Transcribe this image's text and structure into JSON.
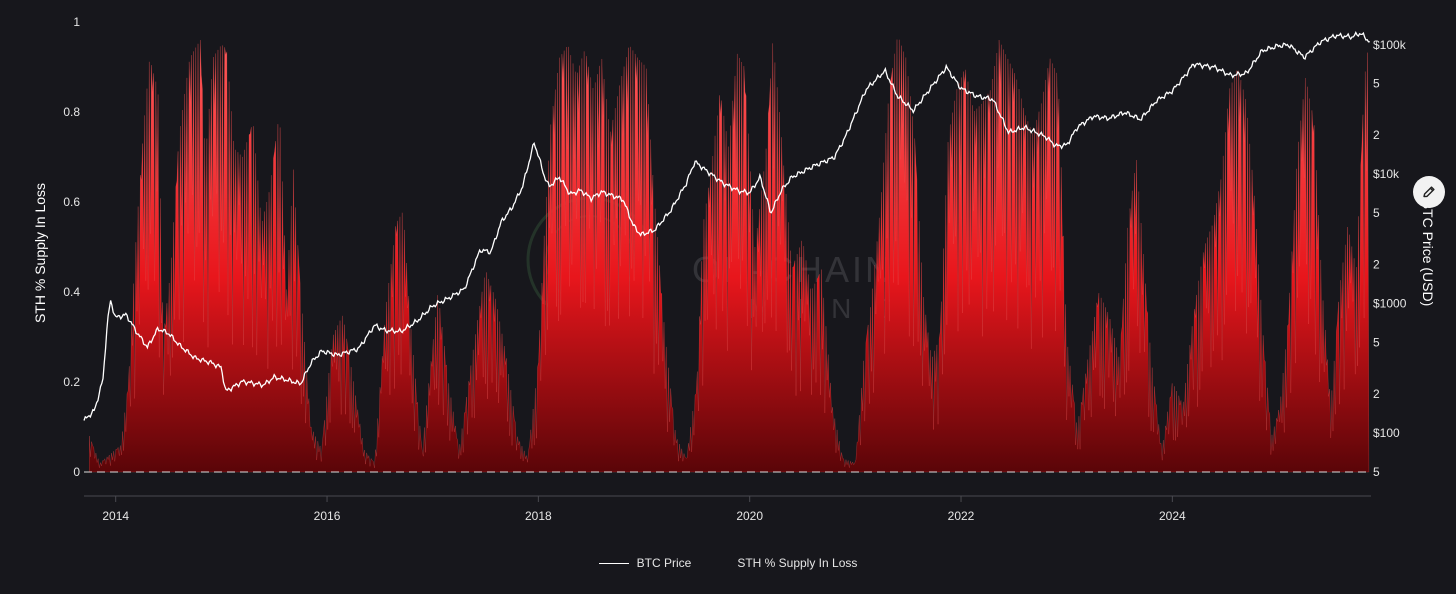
{
  "chart_data": {
    "type": "area",
    "x_axis": {
      "tick_labels": [
        "2014",
        "2016",
        "2018",
        "2020",
        "2022",
        "2024"
      ],
      "range": [
        "2013-09",
        "2025-11"
      ]
    },
    "y_axis_left": {
      "label": "STH % Supply In Loss",
      "range": [
        0,
        1
      ],
      "tick_labels": [
        "0",
        "0.2",
        "0.4",
        "0.6",
        "0.8",
        "1"
      ]
    },
    "y_axis_right": {
      "label": "BTC Price (USD)",
      "scale": "log",
      "range": [
        50,
        150000
      ],
      "tick_labels": [
        "$100k",
        "5",
        "2",
        "$10k",
        "5",
        "2",
        "$1000",
        "5",
        "2",
        "$100",
        "5"
      ]
    },
    "grid": false,
    "legend_position": "bottom",
    "series": [
      {
        "name": "BTC Price",
        "axis": "right",
        "color": "#ffffff",
        "points": [
          [
            2013.7,
            125
          ],
          [
            2013.8,
            150
          ],
          [
            2013.88,
            260
          ],
          [
            2013.92,
            700
          ],
          [
            2013.95,
            1050
          ],
          [
            2014.0,
            780
          ],
          [
            2014.1,
            820
          ],
          [
            2014.2,
            600
          ],
          [
            2014.3,
            460
          ],
          [
            2014.4,
            640
          ],
          [
            2014.5,
            590
          ],
          [
            2014.6,
            480
          ],
          [
            2014.75,
            380
          ],
          [
            2014.9,
            350
          ],
          [
            2015.0,
            320
          ],
          [
            2015.04,
            210
          ],
          [
            2015.2,
            250
          ],
          [
            2015.4,
            235
          ],
          [
            2015.5,
            270
          ],
          [
            2015.6,
            260
          ],
          [
            2015.75,
            240
          ],
          [
            2015.85,
            350
          ],
          [
            2015.95,
            430
          ],
          [
            2016.0,
            420
          ],
          [
            2016.1,
            400
          ],
          [
            2016.3,
            450
          ],
          [
            2016.45,
            680
          ],
          [
            2016.55,
            620
          ],
          [
            2016.7,
            610
          ],
          [
            2016.85,
            730
          ],
          [
            2017.0,
            960
          ],
          [
            2017.15,
            1100
          ],
          [
            2017.3,
            1300
          ],
          [
            2017.45,
            2600
          ],
          [
            2017.55,
            2500
          ],
          [
            2017.65,
            4300
          ],
          [
            2017.75,
            5500
          ],
          [
            2017.85,
            8000
          ],
          [
            2017.96,
            17500
          ],
          [
            2018.0,
            14000
          ],
          [
            2018.05,
            10000
          ],
          [
            2018.1,
            8000
          ],
          [
            2018.2,
            9500
          ],
          [
            2018.3,
            7000
          ],
          [
            2018.4,
            7500
          ],
          [
            2018.5,
            6500
          ],
          [
            2018.6,
            7300
          ],
          [
            2018.8,
            6400
          ],
          [
            2018.9,
            4000
          ],
          [
            2018.97,
            3400
          ],
          [
            2019.1,
            3700
          ],
          [
            2019.25,
            5200
          ],
          [
            2019.4,
            8500
          ],
          [
            2019.48,
            12500
          ],
          [
            2019.6,
            10500
          ],
          [
            2019.75,
            8500
          ],
          [
            2019.9,
            7400
          ],
          [
            2020.0,
            7200
          ],
          [
            2020.1,
            9500
          ],
          [
            2020.2,
            5000
          ],
          [
            2020.3,
            7500
          ],
          [
            2020.4,
            9500
          ],
          [
            2020.6,
            11500
          ],
          [
            2020.8,
            13500
          ],
          [
            2020.9,
            19000
          ],
          [
            2021.0,
            29000
          ],
          [
            2021.1,
            45000
          ],
          [
            2021.28,
            63000
          ],
          [
            2021.4,
            40000
          ],
          [
            2021.55,
            31000
          ],
          [
            2021.7,
            45000
          ],
          [
            2021.86,
            67000
          ],
          [
            2022.0,
            46000
          ],
          [
            2022.15,
            40000
          ],
          [
            2022.3,
            38000
          ],
          [
            2022.45,
            21000
          ],
          [
            2022.6,
            23000
          ],
          [
            2022.8,
            19500
          ],
          [
            2022.9,
            16500
          ],
          [
            2023.0,
            16800
          ],
          [
            2023.1,
            23000
          ],
          [
            2023.25,
            28000
          ],
          [
            2023.4,
            27000
          ],
          [
            2023.55,
            30000
          ],
          [
            2023.7,
            26500
          ],
          [
            2023.85,
            37000
          ],
          [
            2024.0,
            44000
          ],
          [
            2024.15,
            62000
          ],
          [
            2024.2,
            71000
          ],
          [
            2024.4,
            67000
          ],
          [
            2024.55,
            58000
          ],
          [
            2024.7,
            60000
          ],
          [
            2024.85,
            90000
          ],
          [
            2025.0,
            98000
          ],
          [
            2025.1,
            100000
          ],
          [
            2025.25,
            80000
          ],
          [
            2025.4,
            105000
          ],
          [
            2025.55,
            118000
          ],
          [
            2025.7,
            115000
          ],
          [
            2025.78,
            123000
          ],
          [
            2025.87,
            105000
          ]
        ]
      },
      {
        "name": "STH % Supply In Loss",
        "axis": "left",
        "color": "#e8161c",
        "points": [
          [
            2013.75,
            0.08
          ],
          [
            2013.85,
            0.02
          ],
          [
            2013.95,
            0.04
          ],
          [
            2014.05,
            0.06
          ],
          [
            2014.12,
            0.2
          ],
          [
            2014.2,
            0.55
          ],
          [
            2014.26,
            0.75
          ],
          [
            2014.32,
            0.92
          ],
          [
            2014.4,
            0.85
          ],
          [
            2014.45,
            0.3
          ],
          [
            2014.52,
            0.45
          ],
          [
            2014.6,
            0.75
          ],
          [
            2014.7,
            0.92
          ],
          [
            2014.8,
            0.96
          ],
          [
            2014.85,
            0.7
          ],
          [
            2014.92,
            0.92
          ],
          [
            2015.0,
            0.95
          ],
          [
            2015.05,
            0.94
          ],
          [
            2015.12,
            0.72
          ],
          [
            2015.2,
            0.7
          ],
          [
            2015.3,
            0.78
          ],
          [
            2015.38,
            0.55
          ],
          [
            2015.45,
            0.62
          ],
          [
            2015.55,
            0.8
          ],
          [
            2015.62,
            0.4
          ],
          [
            2015.68,
            0.68
          ],
          [
            2015.75,
            0.4
          ],
          [
            2015.85,
            0.1
          ],
          [
            2015.95,
            0.05
          ],
          [
            2016.05,
            0.3
          ],
          [
            2016.15,
            0.35
          ],
          [
            2016.25,
            0.2
          ],
          [
            2016.35,
            0.05
          ],
          [
            2016.45,
            0.02
          ],
          [
            2016.55,
            0.35
          ],
          [
            2016.65,
            0.55
          ],
          [
            2016.72,
            0.58
          ],
          [
            2016.8,
            0.3
          ],
          [
            2016.9,
            0.05
          ],
          [
            2017.05,
            0.4
          ],
          [
            2017.15,
            0.2
          ],
          [
            2017.25,
            0.05
          ],
          [
            2017.4,
            0.3
          ],
          [
            2017.5,
            0.45
          ],
          [
            2017.6,
            0.38
          ],
          [
            2017.7,
            0.25
          ],
          [
            2017.8,
            0.08
          ],
          [
            2017.9,
            0.03
          ],
          [
            2018.0,
            0.25
          ],
          [
            2018.06,
            0.55
          ],
          [
            2018.12,
            0.78
          ],
          [
            2018.2,
            0.92
          ],
          [
            2018.28,
            0.95
          ],
          [
            2018.36,
            0.88
          ],
          [
            2018.44,
            0.94
          ],
          [
            2018.52,
            0.85
          ],
          [
            2018.6,
            0.92
          ],
          [
            2018.68,
            0.75
          ],
          [
            2018.76,
            0.85
          ],
          [
            2018.86,
            0.95
          ],
          [
            2018.94,
            0.92
          ],
          [
            2019.02,
            0.9
          ],
          [
            2019.1,
            0.6
          ],
          [
            2019.2,
            0.3
          ],
          [
            2019.3,
            0.08
          ],
          [
            2019.4,
            0.03
          ],
          [
            2019.5,
            0.2
          ],
          [
            2019.56,
            0.55
          ],
          [
            2019.65,
            0.7
          ],
          [
            2019.72,
            0.85
          ],
          [
            2019.8,
            0.72
          ],
          [
            2019.88,
            0.93
          ],
          [
            2019.95,
            0.9
          ],
          [
            2020.05,
            0.5
          ],
          [
            2020.15,
            0.7
          ],
          [
            2020.22,
            0.96
          ],
          [
            2020.3,
            0.75
          ],
          [
            2020.4,
            0.45
          ],
          [
            2020.5,
            0.52
          ],
          [
            2020.58,
            0.4
          ],
          [
            2020.68,
            0.45
          ],
          [
            2020.78,
            0.15
          ],
          [
            2020.88,
            0.03
          ],
          [
            2021.0,
            0.02
          ],
          [
            2021.08,
            0.25
          ],
          [
            2021.16,
            0.4
          ],
          [
            2021.24,
            0.6
          ],
          [
            2021.32,
            0.85
          ],
          [
            2021.4,
            0.97
          ],
          [
            2021.48,
            0.92
          ],
          [
            2021.56,
            0.75
          ],
          [
            2021.64,
            0.4
          ],
          [
            2021.72,
            0.25
          ],
          [
            2021.8,
            0.3
          ],
          [
            2021.88,
            0.75
          ],
          [
            2021.96,
            0.85
          ],
          [
            2022.04,
            0.9
          ],
          [
            2022.12,
            0.8
          ],
          [
            2022.2,
            0.82
          ],
          [
            2022.28,
            0.85
          ],
          [
            2022.36,
            0.96
          ],
          [
            2022.44,
            0.92
          ],
          [
            2022.52,
            0.88
          ],
          [
            2022.6,
            0.8
          ],
          [
            2022.68,
            0.75
          ],
          [
            2022.76,
            0.82
          ],
          [
            2022.84,
            0.92
          ],
          [
            2022.92,
            0.88
          ],
          [
            2023.0,
            0.3
          ],
          [
            2023.1,
            0.1
          ],
          [
            2023.2,
            0.25
          ],
          [
            2023.3,
            0.4
          ],
          [
            2023.4,
            0.35
          ],
          [
            2023.5,
            0.25
          ],
          [
            2023.58,
            0.55
          ],
          [
            2023.66,
            0.7
          ],
          [
            2023.72,
            0.5
          ],
          [
            2023.8,
            0.25
          ],
          [
            2023.9,
            0.05
          ],
          [
            2024.0,
            0.2
          ],
          [
            2024.1,
            0.15
          ],
          [
            2024.2,
            0.35
          ],
          [
            2024.3,
            0.5
          ],
          [
            2024.38,
            0.55
          ],
          [
            2024.46,
            0.65
          ],
          [
            2024.54,
            0.85
          ],
          [
            2024.62,
            0.9
          ],
          [
            2024.7,
            0.82
          ],
          [
            2024.78,
            0.6
          ],
          [
            2024.86,
            0.3
          ],
          [
            2024.94,
            0.08
          ],
          [
            2025.02,
            0.15
          ],
          [
            2025.1,
            0.35
          ],
          [
            2025.18,
            0.7
          ],
          [
            2025.26,
            0.88
          ],
          [
            2025.34,
            0.78
          ],
          [
            2025.42,
            0.4
          ],
          [
            2025.5,
            0.15
          ],
          [
            2025.58,
            0.4
          ],
          [
            2025.66,
            0.55
          ],
          [
            2025.74,
            0.45
          ],
          [
            2025.82,
            0.88
          ],
          [
            2025.86,
            0.96
          ]
        ]
      }
    ]
  },
  "legend": {
    "items": [
      {
        "label": "BTC Price",
        "color": "#ffffff"
      },
      {
        "label": "STH % Supply In Loss",
        "color": "#e8161c"
      }
    ]
  },
  "watermark": {
    "text1": "ON-CHAIN",
    "text2": "MIND"
  },
  "edit_button": {
    "icon": "pencil-icon"
  }
}
